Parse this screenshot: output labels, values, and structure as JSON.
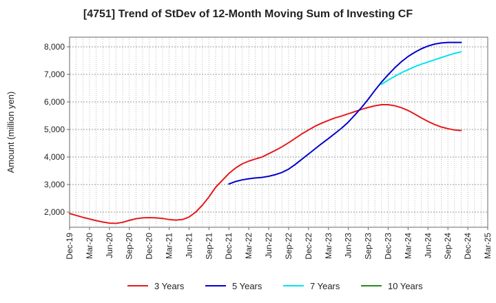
{
  "chart_data": {
    "type": "line",
    "title": "[4751]  Trend of StDev of 12-Month Moving Sum of Investing CF",
    "xlabel": "",
    "ylabel": "Amount (million yen)",
    "ylim": [
      1450,
      8350
    ],
    "y_ticks": [
      2000,
      3000,
      4000,
      5000,
      6000,
      7000,
      8000
    ],
    "y_tick_labels": [
      "2,000",
      "3,000",
      "4,000",
      "5,000",
      "6,000",
      "7,000",
      "8,000"
    ],
    "x_tick_labels": [
      "Dec-19",
      "Mar-20",
      "Jun-20",
      "Sep-20",
      "Dec-20",
      "Mar-21",
      "Jun-21",
      "Sep-21",
      "Dec-21",
      "Mar-22",
      "Jun-22",
      "Sep-22",
      "Dec-22",
      "Mar-23",
      "Jun-23",
      "Sep-23",
      "Dec-23",
      "Mar-24",
      "Jun-24",
      "Sep-24",
      "Dec-24",
      "Mar-25"
    ],
    "grid": true,
    "legend_position": "bottom",
    "series": [
      {
        "name": "3 Years",
        "color": "#e41a1c",
        "points": [
          [
            "Dec-19",
            1950
          ],
          [
            "Jan-20",
            1880
          ],
          [
            "Feb-20",
            1810
          ],
          [
            "Mar-20",
            1750
          ],
          [
            "Apr-20",
            1690
          ],
          [
            "May-20",
            1640
          ],
          [
            "Jun-20",
            1600
          ],
          [
            "Jul-20",
            1590
          ],
          [
            "Aug-20",
            1630
          ],
          [
            "Sep-20",
            1700
          ],
          [
            "Oct-20",
            1760
          ],
          [
            "Nov-20",
            1790
          ],
          [
            "Dec-20",
            1800
          ],
          [
            "Jan-21",
            1790
          ],
          [
            "Feb-21",
            1770
          ],
          [
            "Mar-21",
            1730
          ],
          [
            "Apr-21",
            1710
          ],
          [
            "May-21",
            1730
          ],
          [
            "Jun-21",
            1820
          ],
          [
            "Jul-21",
            2000
          ],
          [
            "Aug-21",
            2250
          ],
          [
            "Sep-21",
            2550
          ],
          [
            "Oct-21",
            2900
          ],
          [
            "Nov-21",
            3150
          ],
          [
            "Dec-21",
            3400
          ],
          [
            "Jan-22",
            3600
          ],
          [
            "Feb-22",
            3750
          ],
          [
            "Mar-22",
            3850
          ],
          [
            "Apr-22",
            3930
          ],
          [
            "May-22",
            4000
          ],
          [
            "Jun-22",
            4120
          ],
          [
            "Jul-22",
            4240
          ],
          [
            "Aug-22",
            4370
          ],
          [
            "Sep-22",
            4520
          ],
          [
            "Oct-22",
            4680
          ],
          [
            "Nov-22",
            4840
          ],
          [
            "Dec-22",
            4980
          ],
          [
            "Jan-23",
            5120
          ],
          [
            "Feb-23",
            5230
          ],
          [
            "Mar-23",
            5330
          ],
          [
            "Apr-23",
            5420
          ],
          [
            "May-23",
            5490
          ],
          [
            "Jun-23",
            5570
          ],
          [
            "Jul-23",
            5650
          ],
          [
            "Aug-23",
            5730
          ],
          [
            "Sep-23",
            5800
          ],
          [
            "Oct-23",
            5860
          ],
          [
            "Nov-23",
            5900
          ],
          [
            "Dec-23",
            5900
          ],
          [
            "Jan-24",
            5860
          ],
          [
            "Feb-24",
            5790
          ],
          [
            "Mar-24",
            5690
          ],
          [
            "Apr-24",
            5560
          ],
          [
            "May-24",
            5420
          ],
          [
            "Jun-24",
            5290
          ],
          [
            "Jul-24",
            5180
          ],
          [
            "Aug-24",
            5090
          ],
          [
            "Sep-24",
            5030
          ],
          [
            "Oct-24",
            4980
          ],
          [
            "Nov-24",
            4960
          ]
        ]
      },
      {
        "name": "5 Years",
        "color": "#0000cc",
        "points": [
          [
            "Dec-21",
            3020
          ],
          [
            "Jan-22",
            3110
          ],
          [
            "Feb-22",
            3170
          ],
          [
            "Mar-22",
            3210
          ],
          [
            "Apr-22",
            3240
          ],
          [
            "May-22",
            3260
          ],
          [
            "Jun-22",
            3300
          ],
          [
            "Jul-22",
            3360
          ],
          [
            "Aug-22",
            3440
          ],
          [
            "Sep-22",
            3560
          ],
          [
            "Oct-22",
            3730
          ],
          [
            "Nov-22",
            3920
          ],
          [
            "Dec-22",
            4110
          ],
          [
            "Jan-23",
            4300
          ],
          [
            "Feb-23",
            4490
          ],
          [
            "Mar-23",
            4670
          ],
          [
            "Apr-23",
            4860
          ],
          [
            "May-23",
            5050
          ],
          [
            "Jun-23",
            5270
          ],
          [
            "Jul-23",
            5530
          ],
          [
            "Aug-23",
            5800
          ],
          [
            "Sep-23",
            6100
          ],
          [
            "Oct-23",
            6420
          ],
          [
            "Nov-23",
            6720
          ],
          [
            "Dec-23",
            6990
          ],
          [
            "Jan-24",
            7240
          ],
          [
            "Feb-24",
            7460
          ],
          [
            "Mar-24",
            7650
          ],
          [
            "Apr-24",
            7800
          ],
          [
            "May-24",
            7930
          ],
          [
            "Jun-24",
            8030
          ],
          [
            "Jul-24",
            8100
          ],
          [
            "Aug-24",
            8140
          ],
          [
            "Sep-24",
            8160
          ],
          [
            "Oct-24",
            8160
          ],
          [
            "Nov-24",
            8160
          ]
        ]
      },
      {
        "name": "7 Years",
        "color": "#00e5ee",
        "points": [
          [
            "Nov-23",
            6640
          ],
          [
            "Dec-23",
            6790
          ],
          [
            "Jan-24",
            6930
          ],
          [
            "Feb-24",
            7060
          ],
          [
            "Mar-24",
            7170
          ],
          [
            "Apr-24",
            7280
          ],
          [
            "May-24",
            7370
          ],
          [
            "Jun-24",
            7450
          ],
          [
            "Jul-24",
            7530
          ],
          [
            "Aug-24",
            7610
          ],
          [
            "Sep-24",
            7690
          ],
          [
            "Oct-24",
            7760
          ],
          [
            "Nov-24",
            7820
          ]
        ]
      },
      {
        "name": "10 Years",
        "color": "#228b22",
        "points": []
      }
    ]
  }
}
